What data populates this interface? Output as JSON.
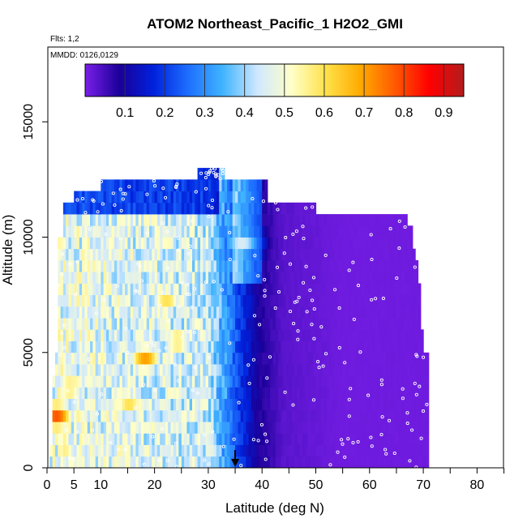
{
  "chart_data": {
    "type": "heatmap",
    "title": "ATOM2 Northeast_Pacific_1 H2O2_GMI",
    "flights_label": "Flts: 1,2",
    "date_label": "MMDD: 0126,0129",
    "xlabel": "Latitude (deg N)",
    "ylabel": "Altitude (m)",
    "xlim": [
      0,
      85
    ],
    "ylim": [
      0,
      17500
    ],
    "x_ticks": [
      0,
      5,
      10,
      20,
      30,
      40,
      50,
      60,
      70,
      80
    ],
    "x_minor_ticks": [
      15,
      25,
      35,
      45,
      55,
      65,
      75,
      85
    ],
    "y_ticks": [
      0,
      5000,
      10000,
      15000
    ],
    "colorbar": {
      "ticks": [
        0.1,
        0.2,
        0.3,
        0.4,
        0.5,
        0.6,
        0.7,
        0.8,
        0.9
      ],
      "range": [
        0,
        0.95
      ],
      "colors": [
        "#7a1fe8",
        "#1a0099",
        "#0022dd",
        "#1e6fff",
        "#40b4ff",
        "#cfe8ff",
        "#ffffc8",
        "#ffe14a",
        "#ffaa00",
        "#ff5a00",
        "#ff0000",
        "#b31c1c"
      ]
    },
    "marker_latitude": 35,
    "altitude_levels": [
      250,
      750,
      1250,
      1750,
      2250,
      2750,
      3250,
      3750,
      4250,
      4750,
      5250,
      5750,
      6250,
      6750,
      7250,
      7750,
      8250,
      8750,
      9250,
      9750,
      10250,
      10750,
      11250,
      11750,
      12250,
      12750
    ],
    "latitude_extent": [
      [
        0.5,
        71
      ],
      [
        0.5,
        71
      ],
      [
        1,
        71
      ],
      [
        1,
        71
      ],
      [
        1,
        71
      ],
      [
        1,
        71
      ],
      [
        1,
        71
      ],
      [
        1,
        71
      ],
      [
        1.5,
        71
      ],
      [
        1.5,
        71
      ],
      [
        2,
        70
      ],
      [
        2,
        70
      ],
      [
        2,
        69.5
      ],
      [
        2,
        69.5
      ],
      [
        2,
        69.5
      ],
      [
        2,
        69.5
      ],
      [
        2,
        69
      ],
      [
        2,
        69
      ],
      [
        2,
        68.5
      ],
      [
        2,
        68
      ],
      [
        3,
        68
      ],
      [
        3,
        67
      ],
      [
        3,
        50
      ],
      [
        5,
        41
      ],
      [
        10,
        41
      ],
      [
        28,
        33
      ]
    ],
    "profile": [
      [
        0,
        0.48
      ],
      [
        30,
        0.44
      ],
      [
        36,
        0.2
      ],
      [
        39,
        0.09
      ],
      [
        44,
        0.03
      ],
      [
        55,
        0.01
      ],
      [
        70,
        0.01
      ]
    ],
    "features": [
      {
        "lat": 1.5,
        "alt": 2250,
        "value": 0.78
      },
      {
        "lat": 4,
        "alt": 3500,
        "value": 0.6
      },
      {
        "lat": 15,
        "alt": 2750,
        "value": 0.6
      },
      {
        "lat": 18,
        "alt": 4750,
        "value": 0.7
      },
      {
        "lat": 24,
        "alt": 5500,
        "value": 0.6
      },
      {
        "lat": 22,
        "alt": 7250,
        "value": 0.6
      },
      {
        "lat": 22,
        "alt": 10000,
        "value": 0.52
      },
      {
        "lat": 36,
        "alt": 9750,
        "value": 0.45
      },
      {
        "lat": 21,
        "alt": 1750,
        "value": 0.48
      }
    ],
    "grid": false,
    "legend_placement": "top"
  }
}
